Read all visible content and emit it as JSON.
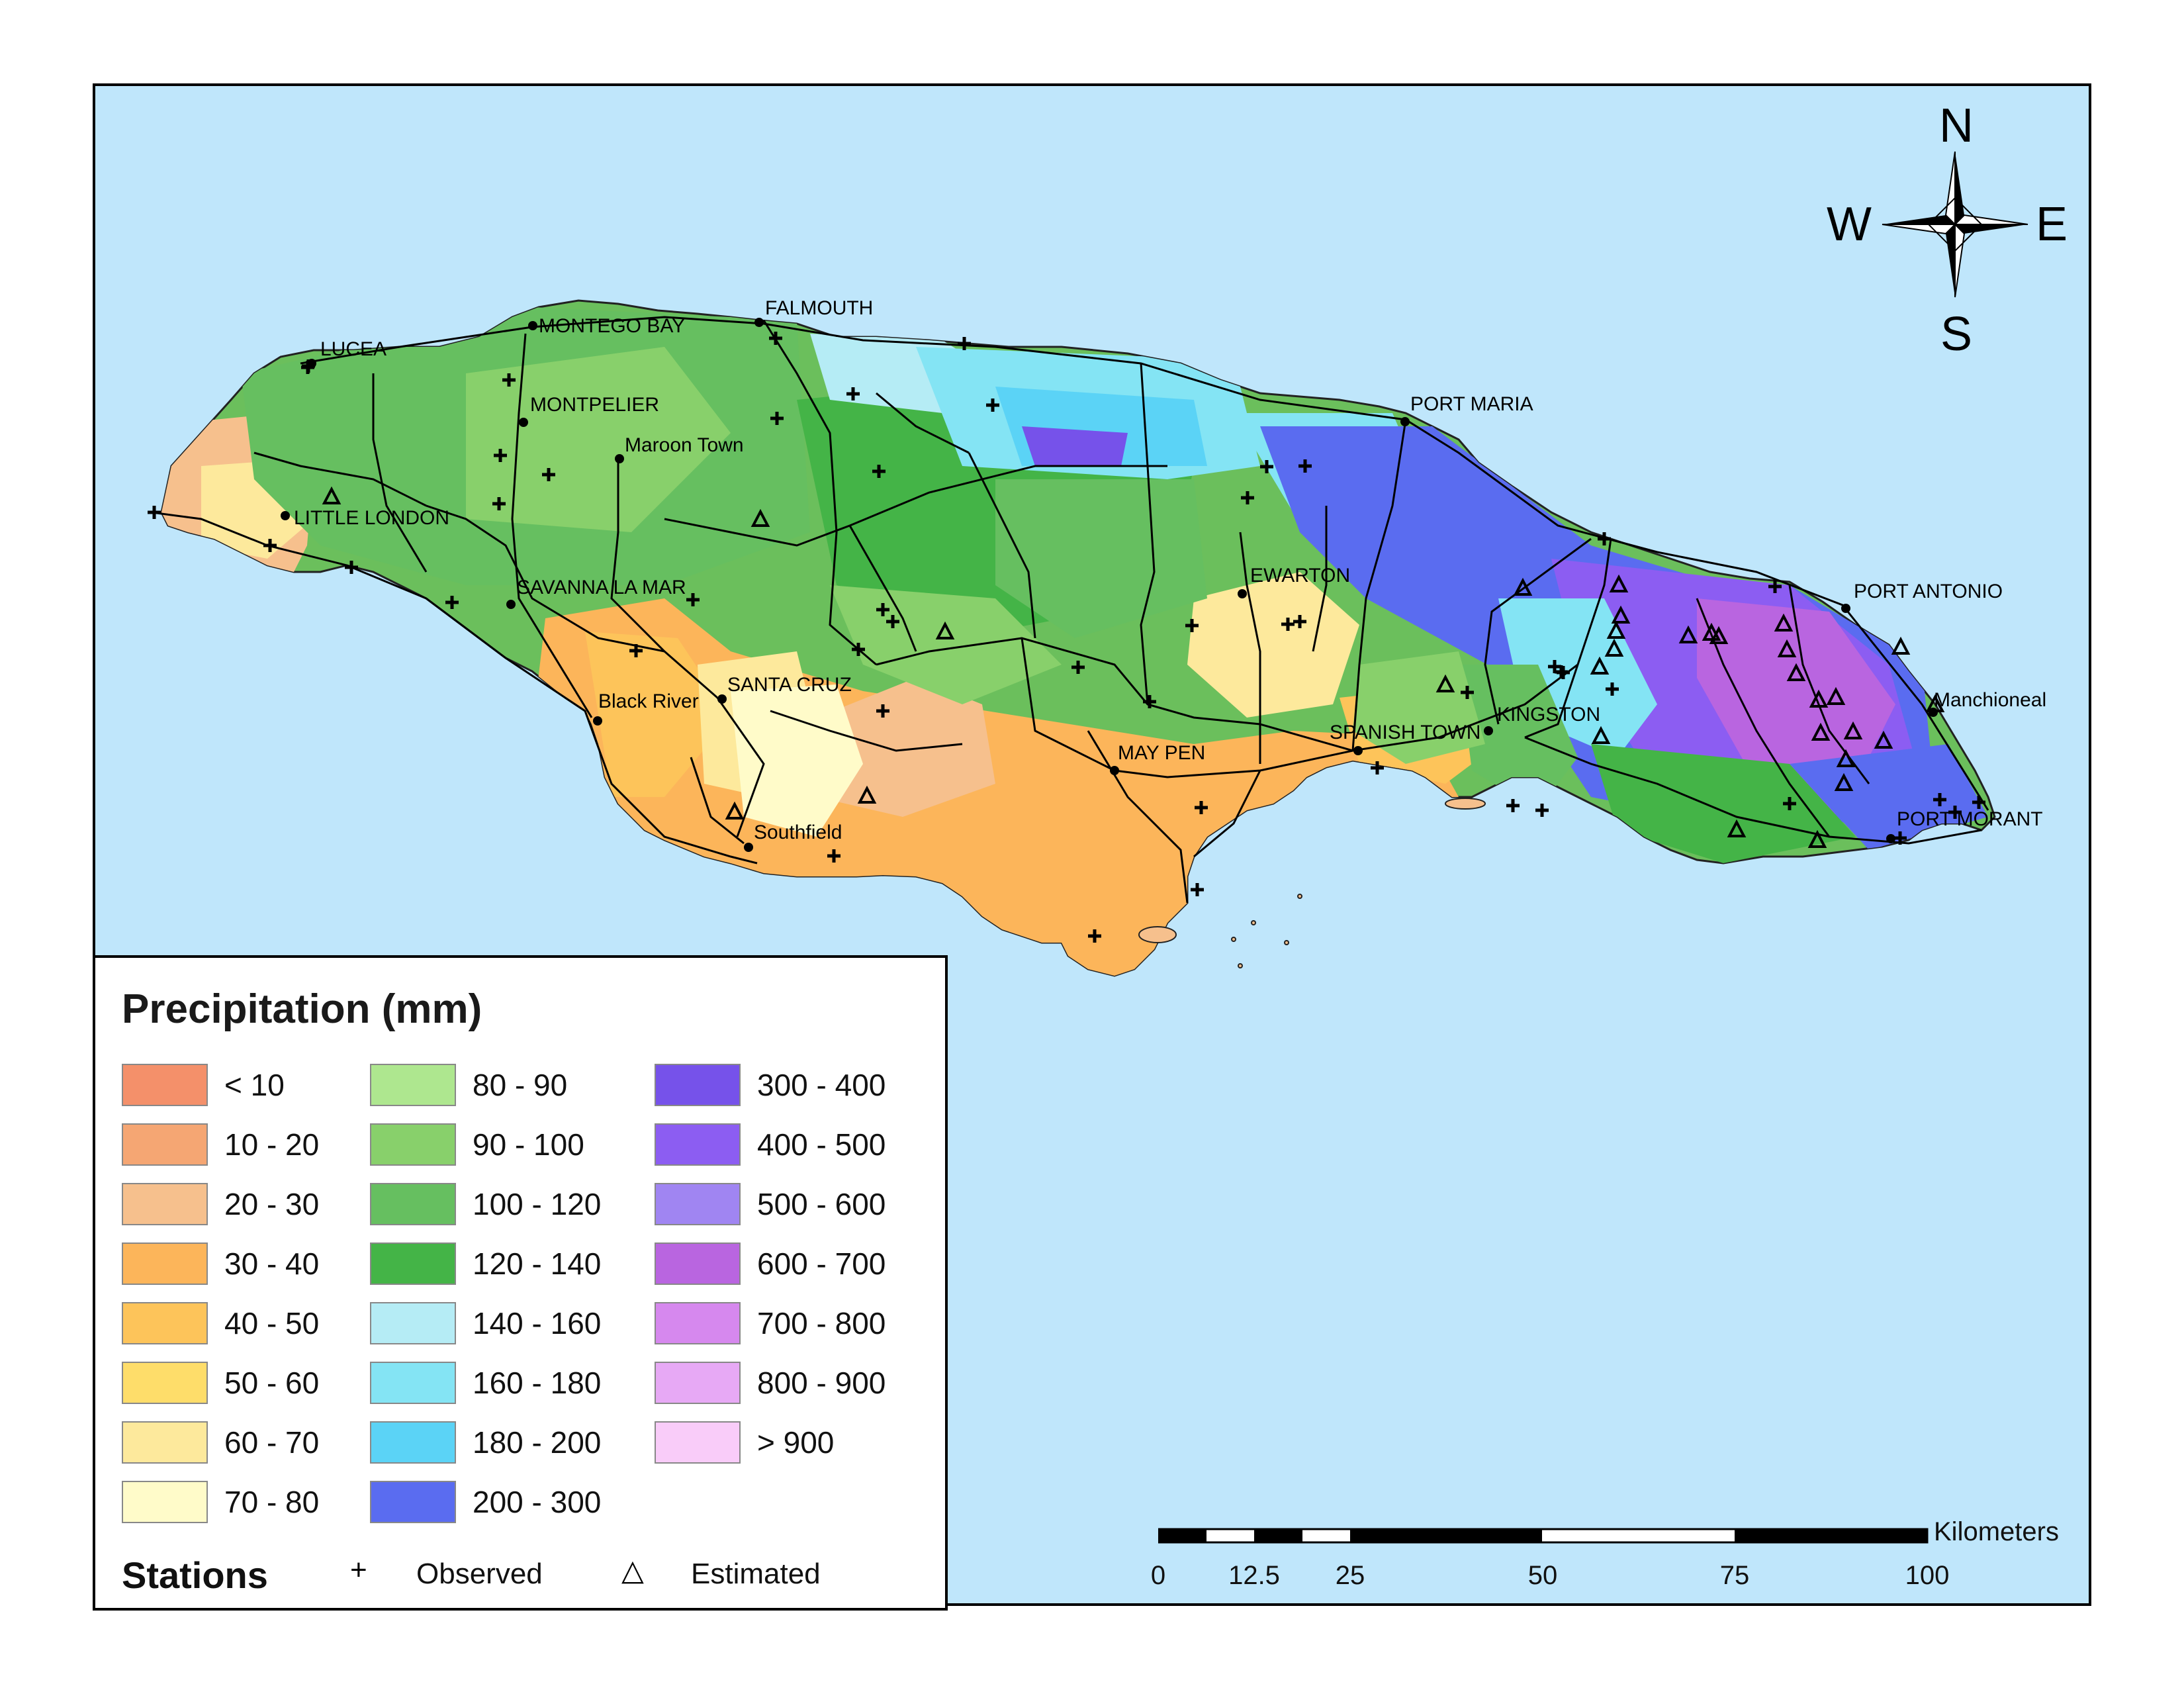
{
  "legend": {
    "title": "Precipitation (mm)",
    "columns": [
      [
        {
          "label": "< 10",
          "color": "#f4906a"
        },
        {
          "label": "10 - 20",
          "color": "#f5a673"
        },
        {
          "label": "20 - 30",
          "color": "#f6c08d"
        },
        {
          "label": "30 - 40",
          "color": "#fcb55a"
        },
        {
          "label": "40 - 50",
          "color": "#fdc45a"
        },
        {
          "label": "50 - 60",
          "color": "#fedd6a"
        },
        {
          "label": "60 - 70",
          "color": "#fde99c"
        },
        {
          "label": "70 - 80",
          "color": "#fffbc9"
        }
      ],
      [
        {
          "label": "80 - 90",
          "color": "#aee78f"
        },
        {
          "label": "90 - 100",
          "color": "#88d06b"
        },
        {
          "label": "100 - 120",
          "color": "#66bf60"
        },
        {
          "label": "120 - 140",
          "color": "#44b447"
        },
        {
          "label": "140 - 160",
          "color": "#b5ecf5"
        },
        {
          "label": "160 - 180",
          "color": "#84e4f4"
        },
        {
          "label": "180 - 200",
          "color": "#5bd3f6"
        },
        {
          "label": "200 - 300",
          "color": "#5a6cf0"
        }
      ],
      [
        {
          "label": "300 - 400",
          "color": "#7652ea"
        },
        {
          "label": "400 - 500",
          "color": "#8c5df2"
        },
        {
          "label": "500 - 600",
          "color": "#a085f2"
        },
        {
          "label": "600 - 700",
          "color": "#b965e0"
        },
        {
          "label": "700 - 800",
          "color": "#d688ee"
        },
        {
          "label": "800 - 900",
          "color": "#e7a9f5"
        },
        {
          "label": "> 900",
          "color": "#f9ccf9"
        }
      ]
    ],
    "stations_title": "Stations",
    "observed_symbol": "+",
    "observed_label": "Observed",
    "estimated_symbol": "△",
    "estimated_label": "Estimated"
  },
  "compass": {
    "north": "N",
    "south": "S",
    "east": "E",
    "west": "W"
  },
  "scale_bar": {
    "unit": "Kilometers",
    "ticks": [
      "0",
      "12.5",
      "25",
      "50",
      "75",
      "100"
    ]
  },
  "places": {
    "lucea": "LUCEA",
    "montego_bay": "MONTEGO BAY",
    "falmouth": "FALMOUTH",
    "montpelier": "MONTPELIER",
    "maroon_town": "Maroon Town",
    "little_london": "LITTLE LONDON",
    "savanna_la_mar": "SAVANNA LA MAR",
    "black_river": "Black River",
    "santa_cruz": "SANTA CRUZ",
    "southfield": "Southfield",
    "may_pen": "MAY PEN",
    "spanish_town": "SPANISH TOWN",
    "kingston": "KINGSTON",
    "ewarton": "EWARTON",
    "port_maria": "PORT MARIA",
    "port_antonio": "PORT ANTONIO",
    "manchioneal": "Manchioneal",
    "port_morant": "PORT MORANT"
  },
  "colors": {
    "sea": "#bfe6fb",
    "road": "#000000"
  }
}
